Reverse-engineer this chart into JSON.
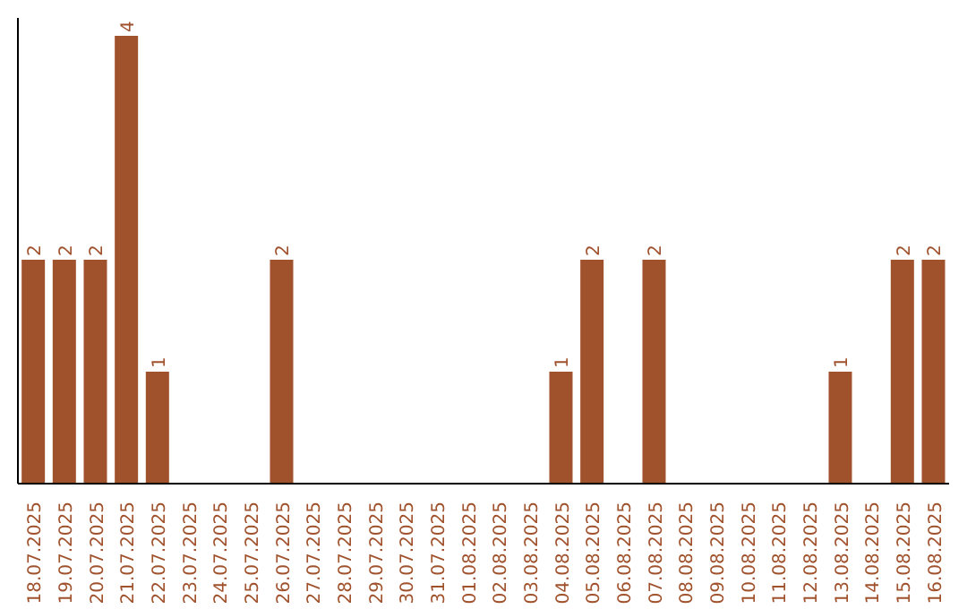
{
  "chart_data": {
    "type": "bar",
    "categories": [
      "18.07.2025",
      "19.07.2025",
      "20.07.2025",
      "21.07.2025",
      "22.07.2025",
      "23.07.2025",
      "24.07.2025",
      "25.07.2025",
      "26.07.2025",
      "27.07.2025",
      "28.07.2025",
      "29.07.2025",
      "30.07.2025",
      "31.07.2025",
      "01.08.2025",
      "02.08.2025",
      "03.08.2025",
      "04.08.2025",
      "05.08.2025",
      "06.08.2025",
      "07.08.2025",
      "08.08.2025",
      "09.08.2025",
      "10.08.2025",
      "11.08.2025",
      "12.08.2025",
      "13.08.2025",
      "14.08.2025",
      "15.08.2025",
      "16.08.2025"
    ],
    "values": [
      2,
      2,
      2,
      4,
      1,
      0,
      0,
      0,
      2,
      0,
      0,
      0,
      0,
      0,
      0,
      0,
      0,
      1,
      2,
      0,
      2,
      0,
      0,
      0,
      0,
      0,
      1,
      0,
      2,
      2
    ],
    "value_labels": [
      "2",
      "2",
      "2",
      "4",
      "1",
      null,
      null,
      null,
      "2",
      null,
      null,
      null,
      null,
      null,
      null,
      null,
      null,
      "1",
      "2",
      null,
      "2",
      null,
      null,
      null,
      null,
      null,
      "1",
      null,
      "2",
      "2"
    ],
    "color": "#a0522d",
    "grid": false,
    "legend": false
  }
}
